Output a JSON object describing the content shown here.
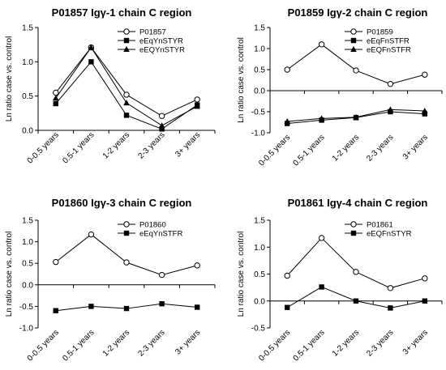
{
  "chart_data": [
    {
      "type": "line",
      "title": "P01857 Igγ-1 chain C region",
      "ylabel": "Ln ratio case vs. control",
      "xlabel": "",
      "categories": [
        "0-0.5 years",
        "0.5-1 years",
        "1-2 years",
        "2-3 years",
        "3+ years"
      ],
      "ylim": [
        0,
        1.5
      ],
      "yticks": [
        "0.0",
        "0.5",
        "1.0",
        "1.5"
      ],
      "legend": "top-right",
      "series": [
        {
          "name": "P01857",
          "marker": "open-circle",
          "values": [
            0.55,
            1.21,
            0.52,
            0.21,
            0.45
          ]
        },
        {
          "name": "eEqYnSTYR",
          "marker": "filled-square",
          "values": [
            0.39,
            1.0,
            0.22,
            0.02,
            0.37
          ]
        },
        {
          "name": "eEQYnSTYR",
          "marker": "filled-triangle",
          "values": [
            0.47,
            1.21,
            0.4,
            0.07,
            0.35
          ]
        }
      ]
    },
    {
      "type": "line",
      "title": "P01859 Igγ-2 chain C region",
      "ylabel": "Ln ratio case vs. control",
      "xlabel": "",
      "categories": [
        "0-0.5 years",
        "0.5-1 years",
        "1-2 years",
        "2-3 years",
        "3+ years"
      ],
      "ylim": [
        -1.0,
        1.5
      ],
      "yticks": [
        "-1.0",
        "-0.5",
        "0.0",
        "0.5",
        "1.0",
        "1.5"
      ],
      "legend": "top-right",
      "series": [
        {
          "name": "P01859",
          "marker": "open-circle",
          "values": [
            0.5,
            1.1,
            0.48,
            0.16,
            0.38
          ]
        },
        {
          "name": "eEqFnSTFR",
          "marker": "filled-square",
          "values": [
            -0.78,
            -0.7,
            -0.64,
            -0.5,
            -0.55
          ]
        },
        {
          "name": "eEQFnSTFR",
          "marker": "filled-triangle",
          "values": [
            -0.73,
            -0.66,
            -0.63,
            -0.45,
            -0.48
          ]
        }
      ]
    },
    {
      "type": "line",
      "title": "P01860 Igγ-3 chain C region",
      "ylabel": "Ln ratio case vs. control",
      "xlabel": "",
      "categories": [
        "0-0.5 years",
        "0.5-1 years",
        "1-2 years",
        "2-3 years",
        "3+ years"
      ],
      "ylim": [
        -1.0,
        1.5
      ],
      "yticks": [
        "-1.0",
        "-0.5",
        "0.0",
        "0.5",
        "1.0",
        "1.5"
      ],
      "legend": "top-right",
      "series": [
        {
          "name": "P01860",
          "marker": "open-circle",
          "values": [
            0.53,
            1.17,
            0.52,
            0.23,
            0.45
          ]
        },
        {
          "name": "eEqYnSTFR",
          "marker": "filled-square",
          "values": [
            -0.6,
            -0.5,
            -0.55,
            -0.44,
            -0.52
          ]
        }
      ]
    },
    {
      "type": "line",
      "title": "P01861 Igγ-4 chain C region",
      "ylabel": "Ln ratio case vs. control",
      "xlabel": "",
      "categories": [
        "0-0.5 years",
        "0.5-1 years",
        "1-2 years",
        "2-3 years",
        "3+ years"
      ],
      "ylim": [
        -0.5,
        1.5
      ],
      "yticks": [
        "-0.5",
        "0.0",
        "0.5",
        "1.0",
        "1.5"
      ],
      "legend": "top-right",
      "series": [
        {
          "name": "P01861",
          "marker": "open-circle",
          "values": [
            0.47,
            1.17,
            0.54,
            0.24,
            0.42
          ]
        },
        {
          "name": "eEQFnSTYR",
          "marker": "filled-square",
          "values": [
            -0.12,
            0.26,
            0.0,
            -0.13,
            0.0
          ]
        }
      ]
    }
  ]
}
